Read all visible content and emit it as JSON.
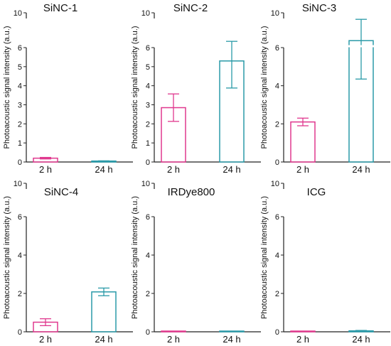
{
  "colors": {
    "h2": "#e0388e",
    "h24": "#2a9aa8",
    "axis": "#222222"
  },
  "chart_data": [
    {
      "type": "bar",
      "title": "SiNC-1",
      "ylabel": "Photoacoustic signal intensity (a.u.)",
      "categories": [
        "2 h",
        "24 h"
      ],
      "values": [
        0.2,
        0.05
      ],
      "errors": [
        0.04,
        0.01
      ],
      "y_axis": "broken",
      "y_segments": [
        [
          0,
          6
        ],
        [
          10,
          10
        ]
      ],
      "yticks": [
        0,
        1,
        2,
        3,
        4,
        5,
        6,
        10
      ]
    },
    {
      "type": "bar",
      "title": "SiNC-2",
      "ylabel": "Photoacoustic signal intensity (a.u.)",
      "categories": [
        "2 h",
        "24 h"
      ],
      "values": [
        2.85,
        5.3
      ],
      "errors": [
        0.72,
        1.42
      ],
      "y_axis": "broken",
      "y_segments": [
        [
          0,
          6
        ],
        [
          10,
          10
        ]
      ],
      "yticks": [
        0,
        1,
        2,
        3,
        4,
        5,
        6,
        10
      ]
    },
    {
      "type": "bar",
      "title": "SiNC-3",
      "ylabel": "Photoacoustic signal intensity (a.u.)",
      "categories": [
        "2 h",
        "24 h"
      ],
      "values": [
        2.1,
        6.8
      ],
      "errors": [
        0.2,
        2.45
      ],
      "y_axis": "broken",
      "y_segments": [
        [
          0,
          6
        ],
        [
          10,
          10
        ]
      ],
      "yticks": [
        0,
        2,
        4,
        6,
        10
      ]
    },
    {
      "type": "bar",
      "title": "SiNC-4",
      "ylabel": "Photoacoustic signal intensity (a.u.)",
      "categories": [
        "2 h",
        "24 h"
      ],
      "values": [
        0.5,
        2.08
      ],
      "errors": [
        0.18,
        0.2
      ],
      "y_axis": "broken",
      "y_segments": [
        [
          0,
          6
        ],
        [
          10,
          10
        ]
      ],
      "yticks": [
        0,
        2,
        4,
        6,
        10
      ]
    },
    {
      "type": "bar",
      "title": "IRDye800",
      "ylabel": "Photoacoustic signal intensity (a.u.)",
      "categories": [
        "2 h",
        "24 h"
      ],
      "values": [
        0.03,
        0.03
      ],
      "errors": [
        0.0,
        0.0
      ],
      "y_axis": "broken",
      "y_segments": [
        [
          0,
          6
        ],
        [
          10,
          10
        ]
      ],
      "yticks": [
        0,
        2,
        4,
        6,
        10
      ]
    },
    {
      "type": "bar",
      "title": "ICG",
      "ylabel": "Photoacoustic signal intensity (a.u.)",
      "categories": [
        "2 h",
        "24 h"
      ],
      "values": [
        0.03,
        0.05
      ],
      "errors": [
        0.0,
        0.02
      ],
      "y_axis": "broken",
      "y_segments": [
        [
          0,
          6
        ],
        [
          10,
          10
        ]
      ],
      "yticks": [
        0,
        2,
        4,
        6,
        10
      ]
    }
  ]
}
